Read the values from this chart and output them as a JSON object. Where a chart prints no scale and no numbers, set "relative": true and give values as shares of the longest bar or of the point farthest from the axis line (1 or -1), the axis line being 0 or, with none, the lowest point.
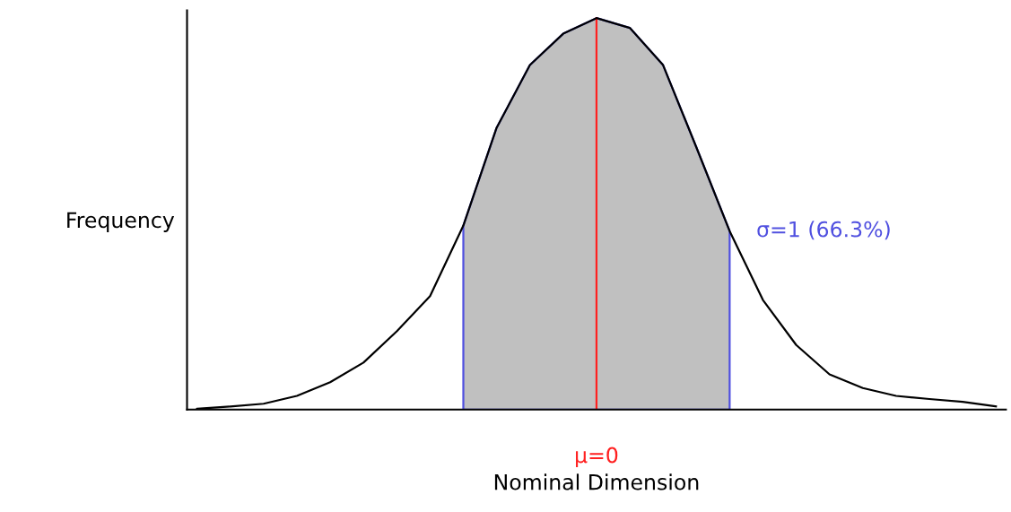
{
  "chart_data": {
    "type": "line",
    "relative": true,
    "xlabel": "Nominal Dimension",
    "ylabel": "Frequency",
    "categories": [
      null,
      null,
      null,
      null,
      null,
      null,
      null,
      null,
      null,
      null,
      null,
      null,
      null,
      null,
      null,
      null,
      null,
      null,
      null,
      null,
      null,
      null,
      null,
      null,
      null
    ],
    "series": [
      {
        "type": "line",
        "color": "#000000",
        "values": [
          0.002,
          0.008,
          0.015,
          0.035,
          0.07,
          0.12,
          0.2,
          0.29,
          0.47,
          0.72,
          0.88,
          0.96,
          1.0,
          0.975,
          0.88,
          0.67,
          0.456,
          0.28,
          0.165,
          0.09,
          0.055,
          0.035,
          0.027,
          0.02,
          0.008
        ]
      },
      {
        "type": "area",
        "color": "#c0c0c0",
        "values": [
          null,
          null,
          null,
          null,
          null,
          null,
          null,
          null,
          0.47,
          0.72,
          0.88,
          0.96,
          1.0,
          0.975,
          0.88,
          0.67,
          0.456,
          null,
          null,
          null,
          null,
          null,
          null,
          null,
          null
        ]
      }
    ],
    "annotations": [
      "μ=0",
      "σ=1 (66.3%)"
    ]
  }
}
